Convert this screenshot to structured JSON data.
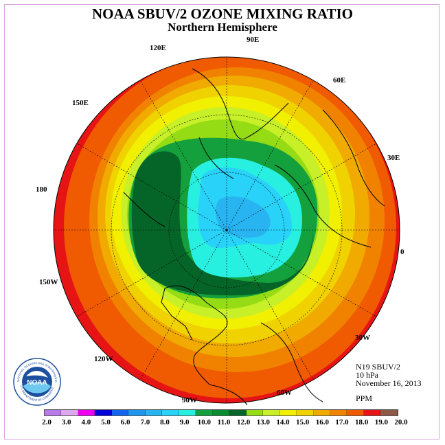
{
  "header": {
    "title": "NOAA SBUV/2 OZONE MIXING RATIO",
    "subtitle": "Northern Hemisphere"
  },
  "info": {
    "instrument": "N19 SBUV/2",
    "pressure": "10 hPa",
    "date": "November 16, 2013",
    "units": "PPM"
  },
  "logo": {
    "text": "NOAA",
    "ring_text": "NATIONAL OCEANIC AND ATMOSPHERIC ADMINISTRATION",
    "bottom_text": "U.S. DEPARTMENT OF COMMERCE"
  },
  "map": {
    "projection": "polar stereographic",
    "hemisphere": "north",
    "longitude_labels": [
      "0",
      "30E",
      "60E",
      "90E",
      "120E",
      "150E",
      "180",
      "150W",
      "120W",
      "90W",
      "60W",
      "30W"
    ]
  },
  "colorbar": {
    "labels": [
      "2.0",
      "3.0",
      "4.0",
      "5.0",
      "6.0",
      "7.0",
      "8.0",
      "9.0",
      "10.0",
      "11.0",
      "12.0",
      "13.0",
      "14.0",
      "15.0",
      "16.0",
      "17.0",
      "18.0",
      "19.0",
      "20.0"
    ],
    "colors": [
      "#b87ae8",
      "#dca8f0",
      "#f000f0",
      "#0000d8",
      "#1464f0",
      "#1e96f0",
      "#28b4f0",
      "#28d2f8",
      "#28f0e0",
      "#14a03c",
      "#0a8c32",
      "#056428",
      "#96dc14",
      "#c8f028",
      "#f0f000",
      "#f0d200",
      "#f0aa00",
      "#f08200",
      "#f05a00",
      "#e61414",
      "#8c5a46"
    ]
  }
}
